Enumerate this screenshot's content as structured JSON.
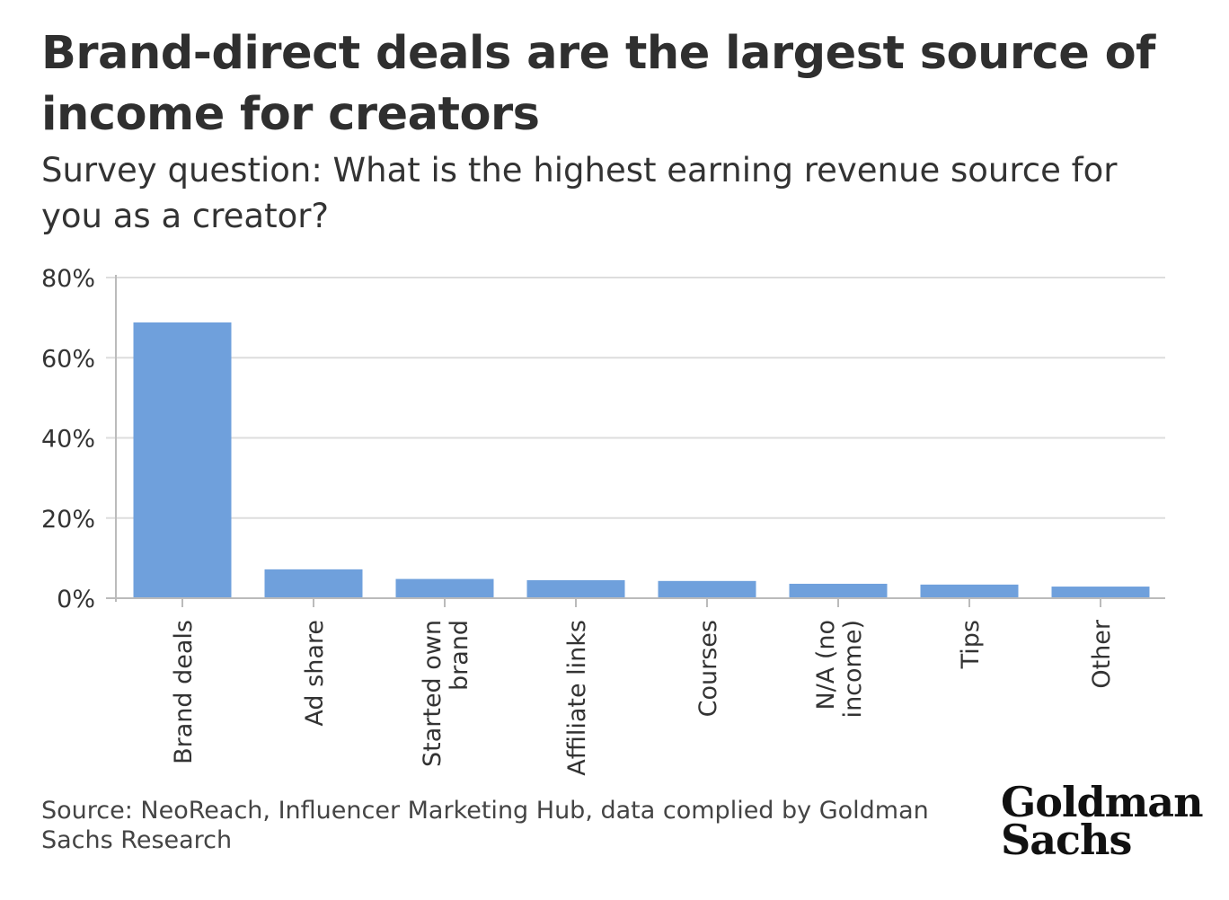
{
  "header": {
    "title": "Brand-direct deals are the largest source of income for creators",
    "subtitle": "Survey question: What is the highest earning revenue source for you as a creator?"
  },
  "footer": {
    "source": "Source: NeoReach, Influencer Marketing Hub, data complied by Goldman Sachs Research",
    "logo_text": "Goldman Sachs"
  },
  "colors": {
    "bar": "#6fa0dc",
    "grid": "#dddddd",
    "axis": "#bbbbbb",
    "text": "#333333"
  },
  "chart_data": {
    "type": "bar",
    "title": "Brand-direct deals are the largest source of income for creators",
    "subtitle": "Survey question: What is the highest earning revenue source for you as a creator?",
    "xlabel": "",
    "ylabel": "",
    "grid": true,
    "ylim": [
      0,
      80
    ],
    "yticks": [
      "0%",
      "20%",
      "40%",
      "60%",
      "80%"
    ],
    "ytick_values": [
      0,
      20,
      40,
      60,
      80
    ],
    "categories": [
      [
        "Brand deals"
      ],
      [
        "Ad share"
      ],
      [
        "Started own",
        "brand"
      ],
      [
        "Affiliate links"
      ],
      [
        "Courses"
      ],
      [
        "N/A (no",
        "income)"
      ],
      [
        "Tips"
      ],
      [
        "Other"
      ]
    ],
    "values": [
      68.8,
      7.2,
      4.8,
      4.5,
      4.3,
      3.6,
      3.4,
      2.9
    ]
  }
}
